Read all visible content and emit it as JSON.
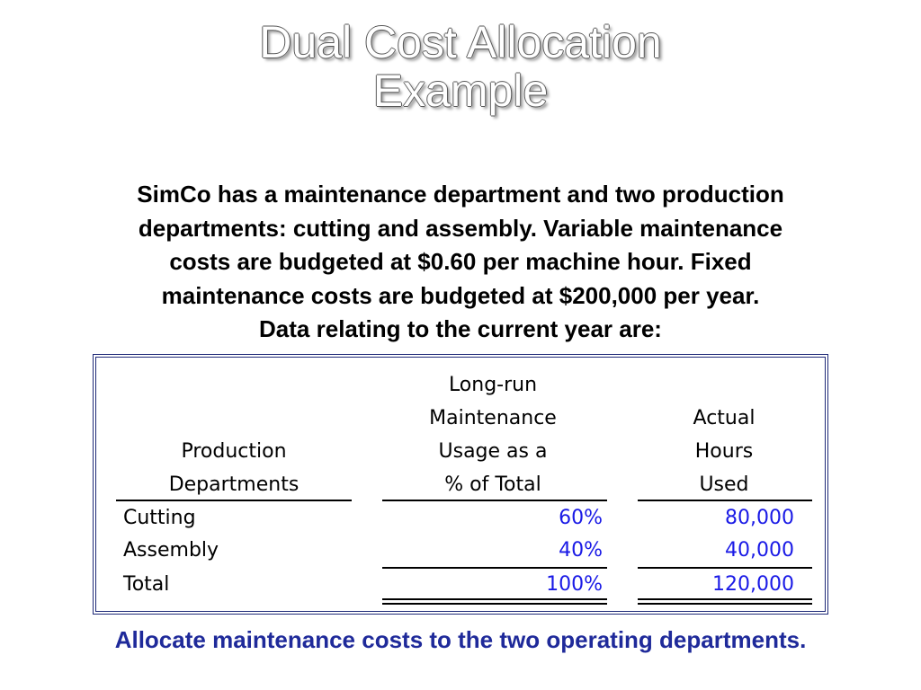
{
  "slide": {
    "title_line1": "Dual Cost Allocation",
    "title_line2": "Example",
    "intro_lines": [
      "SimCo has a maintenance department and two production",
      "departments:  cutting and assembly.  Variable maintenance",
      "costs are budgeted at $0.60 per machine hour.  Fixed",
      "maintenance costs are budgeted at $200,000 per year.",
      "Data relating to the current year are:"
    ],
    "footer": "Allocate maintenance costs to the two operating departments."
  },
  "table": {
    "headers": {
      "department": [
        "Production",
        "Departments"
      ],
      "usage": [
        "Long-run",
        "Maintenance",
        "Usage as a",
        "% of Total"
      ],
      "hours": [
        "Actual",
        "Hours",
        "Used"
      ]
    },
    "rows": [
      {
        "label": "Cutting",
        "usage": "60%",
        "hours": "80,000"
      },
      {
        "label": "Assembly",
        "usage": "40%",
        "hours": "40,000"
      },
      {
        "label": "Total",
        "usage": "100%",
        "hours": "120,000"
      }
    ]
  },
  "colors": {
    "title_fill": "#ffffff",
    "table_border": "#1f2a78",
    "value_text": "#1a1ae6",
    "footer_text": "#1f2a9a"
  }
}
